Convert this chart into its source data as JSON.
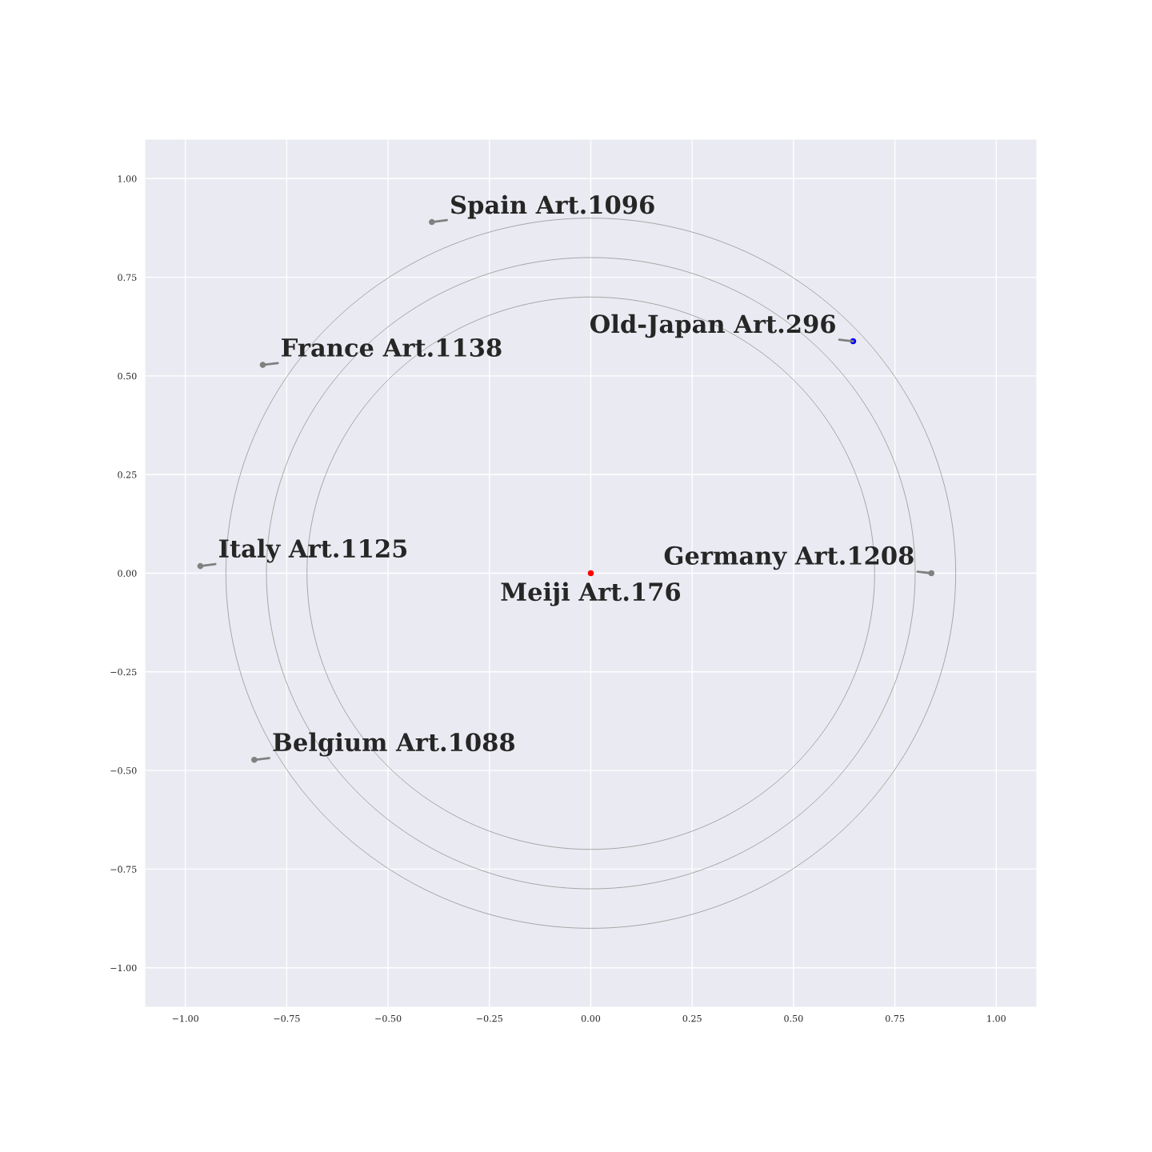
{
  "chart_data": {
    "type": "scatter",
    "xlim": [
      -1.1,
      1.1
    ],
    "ylim": [
      -1.1,
      1.1
    ],
    "xticks": [
      {
        "value": -1,
        "label": "−1.00"
      },
      {
        "value": -0.75,
        "label": "−0.75"
      },
      {
        "value": -0.5,
        "label": "−0.50"
      },
      {
        "value": -0.25,
        "label": "−0.25"
      },
      {
        "value": 0,
        "label": "0.00"
      },
      {
        "value": 0.25,
        "label": "0.25"
      },
      {
        "value": 0.5,
        "label": "0.50"
      },
      {
        "value": 0.75,
        "label": "0.75"
      },
      {
        "value": 1,
        "label": "1.00"
      }
    ],
    "yticks": [
      {
        "value": -1,
        "label": "−1.00"
      },
      {
        "value": -0.75,
        "label": "−0.75"
      },
      {
        "value": -0.5,
        "label": "−0.50"
      },
      {
        "value": -0.25,
        "label": "−0.25"
      },
      {
        "value": 0,
        "label": "0.00"
      },
      {
        "value": 0.25,
        "label": "0.25"
      },
      {
        "value": 0.5,
        "label": "0.50"
      },
      {
        "value": 0.75,
        "label": "0.75"
      },
      {
        "value": 1,
        "label": "1.00"
      }
    ],
    "grid": true,
    "series": [
      {
        "type": "scatter",
        "marker": "circle",
        "x": [
          0,
          0.647,
          0.84,
          -0.392,
          -0.809,
          -0.963,
          -0.83
        ],
        "values": [
          0,
          0.588,
          0,
          0.89,
          0.528,
          0.018,
          -0.473
        ],
        "colors": [
          "#ff0000",
          "#0000ff",
          "#808080",
          "#808080",
          "#808080",
          "#808080",
          "#808080"
        ]
      }
    ],
    "annotations": [
      {
        "text": "Meiji Art.176",
        "x": 0,
        "y": 0
      },
      {
        "text": "Old-Japan Art.296",
        "x": 0.647,
        "y": 0.588
      },
      {
        "text": "Germany Art.1208",
        "x": 0.84,
        "y": 0
      },
      {
        "text": "Spain Art.1096",
        "x": -0.392,
        "y": 0.89
      },
      {
        "text": "France Art.1138",
        "x": -0.809,
        "y": 0.528
      },
      {
        "text": "Italy Art.1125",
        "x": -0.963,
        "y": 0.018
      },
      {
        "text": "Belgium Art.1088",
        "x": -0.83,
        "y": -0.473
      }
    ]
  }
}
